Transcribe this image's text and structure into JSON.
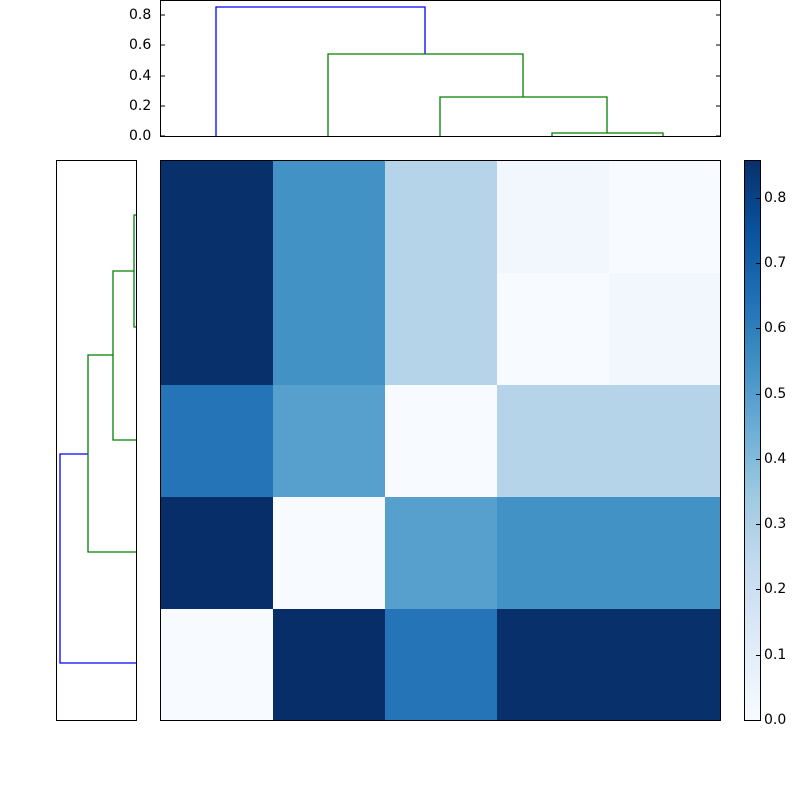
{
  "chart_data": {
    "type": "heatmap",
    "title": "",
    "description": "Clustered heatmap (distance matrix) with top and left dendrograms and colorbar",
    "colormap": "Blues",
    "matrix": [
      [
        0.82,
        0.55,
        0.27,
        0.02,
        0.0
      ],
      [
        0.82,
        0.55,
        0.27,
        0.0,
        0.02
      ],
      [
        0.64,
        0.5,
        0.0,
        0.27,
        0.27
      ],
      [
        0.86,
        0.0,
        0.5,
        0.55,
        0.55
      ],
      [
        0.0,
        0.86,
        0.64,
        0.82,
        0.82
      ]
    ],
    "cell_colors": [
      [
        "#08306b",
        "#4292c6",
        "#b5d4e9",
        "#f2f7fd",
        "#f7fbff"
      ],
      [
        "#08306b",
        "#4292c6",
        "#b5d4e9",
        "#f7fbff",
        "#f2f7fd"
      ],
      [
        "#2474b7",
        "#57a0ce",
        "#f7fbff",
        "#b5d4e9",
        "#b5d4e9"
      ],
      [
        "#082e6a",
        "#f7fbff",
        "#57a0ce",
        "#4292c6",
        "#4292c6"
      ],
      [
        "#f7fbff",
        "#082e6a",
        "#2474b7",
        "#08306b",
        "#08306b"
      ]
    ],
    "xlabel": "",
    "ylabel": "",
    "top_dendrogram": {
      "yticks": [
        "0.0",
        "0.2",
        "0.4",
        "0.6",
        "0.8"
      ],
      "ylim": [
        0,
        0.9
      ],
      "merge_heights": [
        0.02,
        0.27,
        0.55,
        0.86
      ],
      "link_colors": [
        "#008000",
        "#008000",
        "#008000",
        "#0000ff"
      ]
    },
    "left_dendrogram": {
      "merge_heights": [
        0.02,
        0.27,
        0.55,
        0.86
      ],
      "link_colors": [
        "#008000",
        "#008000",
        "#008000",
        "#0000ff"
      ]
    },
    "colorbar": {
      "ticks": [
        "0.0",
        "0.1",
        "0.2",
        "0.3",
        "0.4",
        "0.5",
        "0.6",
        "0.7",
        "0.8"
      ],
      "range": [
        0,
        0.86
      ]
    }
  }
}
